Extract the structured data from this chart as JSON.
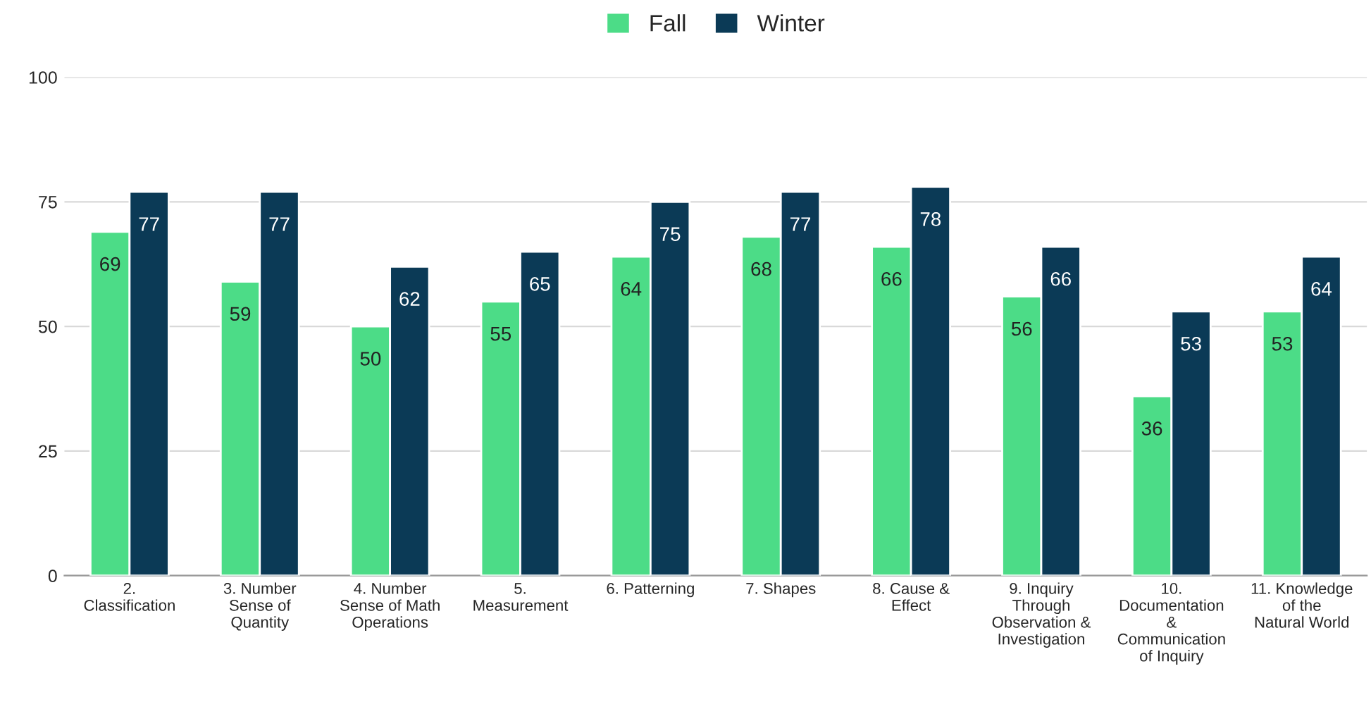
{
  "chart_data": {
    "type": "bar",
    "categories": [
      "2. Classification",
      "3. Number Sense of Quantity",
      "4. Number Sense of Math Operations",
      "5. Measurement",
      "6. Patterning",
      "7. Shapes",
      "8. Cause & Effect",
      "9. Inquiry Through Observation & Investigation",
      "10. Documentation & Communication of Inquiry",
      "11. Knowledge of the Natural World"
    ],
    "series": [
      {
        "name": "Fall",
        "color": "#4cdc87",
        "values": [
          69,
          59,
          50,
          55,
          64,
          68,
          66,
          56,
          36,
          53
        ]
      },
      {
        "name": "Winter",
        "color": "#0b3a56",
        "values": [
          77,
          77,
          62,
          65,
          75,
          77,
          78,
          66,
          53,
          64
        ]
      }
    ],
    "ylim": [
      0,
      100
    ],
    "yticks": [
      0,
      25,
      50,
      75,
      100
    ],
    "grid": "y",
    "legend": "top",
    "data_labels": true
  }
}
